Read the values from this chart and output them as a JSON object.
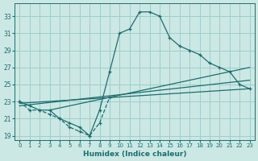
{
  "xlabel": "Humidex (Indice chaleur)",
  "bg_color": "#cce8e4",
  "grid_color": "#9ececa",
  "line_color": "#1a6e6e",
  "xlim": [
    -0.5,
    23.5
  ],
  "ylim": [
    18.5,
    34.5
  ],
  "yticks": [
    19,
    21,
    23,
    25,
    27,
    29,
    31,
    33
  ],
  "xticks": [
    0,
    1,
    2,
    3,
    4,
    5,
    6,
    7,
    8,
    9,
    10,
    11,
    12,
    13,
    14,
    15,
    16,
    17,
    18,
    19,
    20,
    21,
    22,
    23
  ],
  "curve_x": [
    0,
    1,
    2,
    3,
    4,
    5,
    6,
    7,
    8,
    9,
    10,
    11,
    12,
    13,
    14,
    15,
    16,
    17,
    18,
    19,
    20,
    21,
    22,
    23
  ],
  "curve_y": [
    23.0,
    22.5,
    22.0,
    22.0,
    21.0,
    20.5,
    20.0,
    19.0,
    22.0,
    26.5,
    31.0,
    31.5,
    33.5,
    33.5,
    33.0,
    30.5,
    29.5,
    29.0,
    28.5,
    27.5,
    27.0,
    26.5,
    25.0,
    24.5
  ],
  "sub_x": [
    0,
    1,
    2,
    3,
    4,
    5,
    6,
    7,
    8,
    9
  ],
  "sub_y": [
    23.0,
    22.0,
    22.0,
    21.5,
    21.0,
    20.0,
    19.5,
    19.0,
    20.5,
    23.5
  ],
  "line1_x": [
    0,
    23
  ],
  "line1_y": [
    22.8,
    24.5
  ],
  "line2_x": [
    0,
    23
  ],
  "line2_y": [
    22.5,
    25.5
  ],
  "line3_x": [
    3,
    23
  ],
  "line3_y": [
    22.0,
    27.0
  ]
}
